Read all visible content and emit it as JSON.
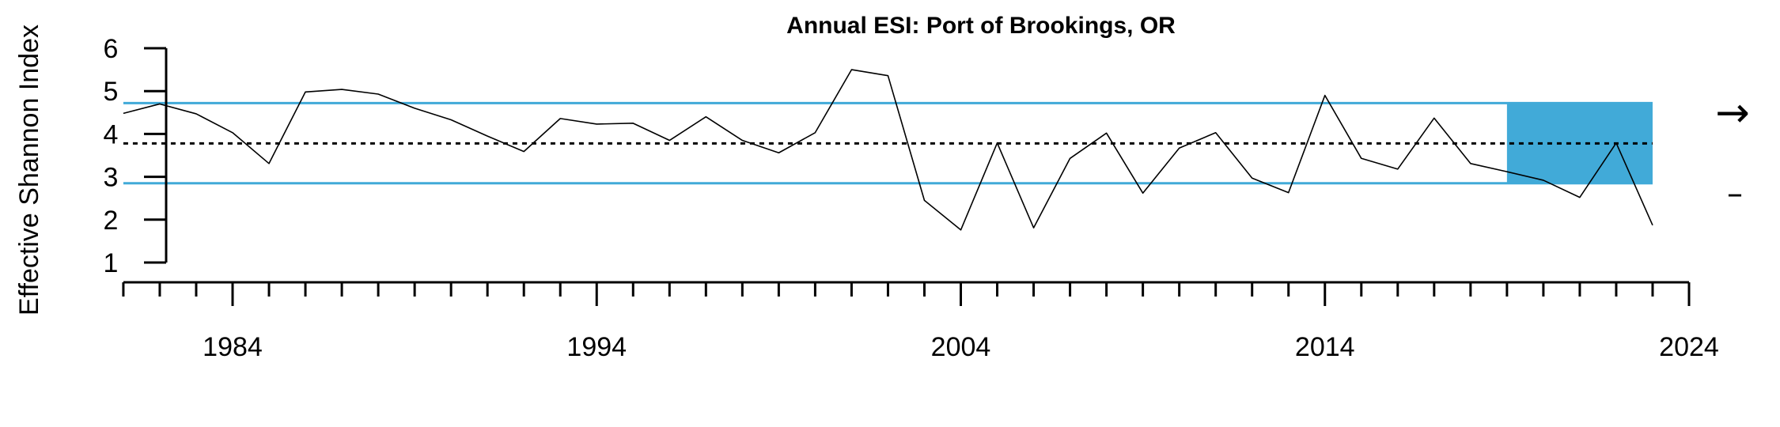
{
  "chart_data": {
    "type": "line",
    "title": "Annual ESI: Port of Brookings, OR",
    "xlabel": "",
    "ylabel": "Effective Shannon Index",
    "xlim": [
      1981,
      2024
    ],
    "ylim": [
      1,
      6
    ],
    "x_ticks_labeled": [
      1984,
      1994,
      2004,
      2014,
      2024
    ],
    "y_ticks": [
      1,
      2,
      3,
      4,
      5,
      6
    ],
    "series": [
      {
        "x": [
          1981,
          1982,
          1983,
          1984,
          1985,
          1986,
          1987,
          1988,
          1989,
          1990,
          1991,
          1992,
          1993,
          1994,
          1995,
          1996,
          1997,
          1998,
          1999,
          2000,
          2001,
          2002,
          2003,
          2004,
          2005,
          2006,
          2007,
          2008,
          2009,
          2010,
          2011,
          2012,
          2013,
          2014,
          2015,
          2016,
          2017,
          2018,
          2019,
          2020,
          2021,
          2022,
          2023
        ],
        "values": [
          4.48,
          4.7,
          4.47,
          4.03,
          3.31,
          4.98,
          5.04,
          4.93,
          4.6,
          4.33,
          3.95,
          3.59,
          4.36,
          4.23,
          4.25,
          3.85,
          4.4,
          3.85,
          3.56,
          4.03,
          5.5,
          5.36,
          2.45,
          1.76,
          3.79,
          1.81,
          3.43,
          4.02,
          2.62,
          3.67,
          4.03,
          2.97,
          2.63,
          4.9,
          3.43,
          3.18,
          4.37,
          3.31,
          3.12,
          2.92,
          2.52,
          3.79,
          1.87
        ],
        "color": "#000000"
      }
    ],
    "mean": 3.78,
    "upper_sd": 4.72,
    "lower_sd": 2.85,
    "highlight_x_range": [
      2019,
      2023
    ],
    "colors": {
      "band": "#41aad8",
      "line": "#000000",
      "mean": "#000000"
    },
    "trend_indicators": {
      "mean_trend": "→",
      "sd_trend": "–"
    },
    "grid": false
  }
}
